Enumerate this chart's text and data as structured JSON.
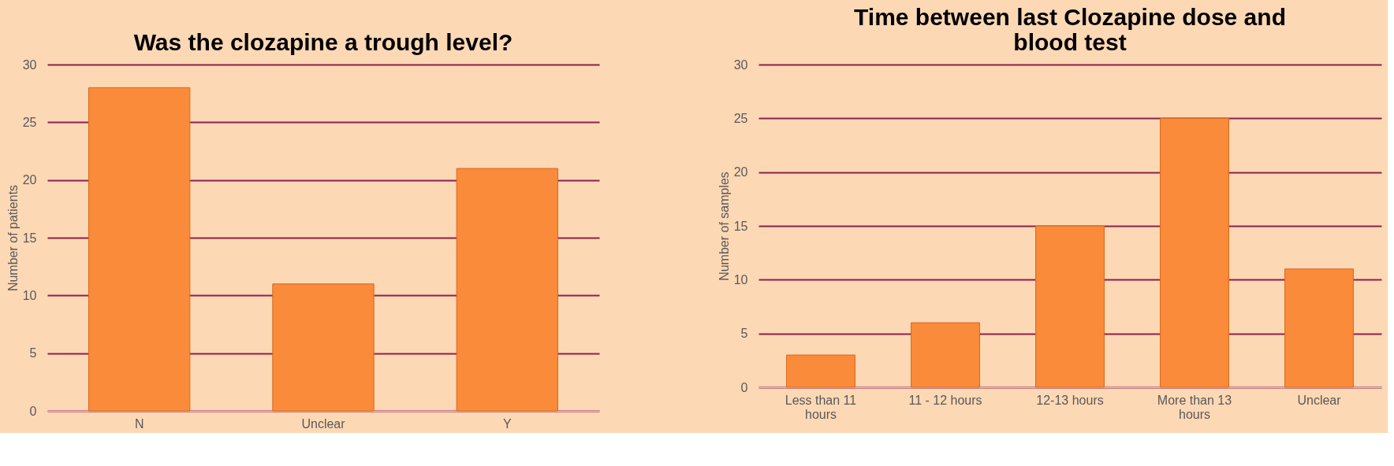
{
  "chart_data": [
    {
      "type": "bar",
      "title": "Was the clozapine a trough level?",
      "ylabel": "Number of patients",
      "categories": [
        "N",
        "Unclear",
        "Y"
      ],
      "values": [
        28,
        11,
        21
      ],
      "color": "#f98b3a",
      "ylim": [
        0,
        30
      ],
      "yticks": [
        0,
        5,
        10,
        15,
        20,
        25,
        30
      ],
      "grid": "y"
    },
    {
      "type": "bar",
      "title": "Time between last Clozapine dose and blood test",
      "ylabel": "Number of samples",
      "categories": [
        "Less than 11 hours",
        "11 - 12 hours",
        "12-13 hours",
        "More than 13 hours",
        "Unclear"
      ],
      "values": [
        3,
        6,
        15,
        25,
        11
      ],
      "color": "#f98b3a",
      "ylim": [
        0,
        30
      ],
      "yticks": [
        0,
        5,
        10,
        15,
        20,
        25,
        30
      ],
      "grid": "y"
    }
  ]
}
